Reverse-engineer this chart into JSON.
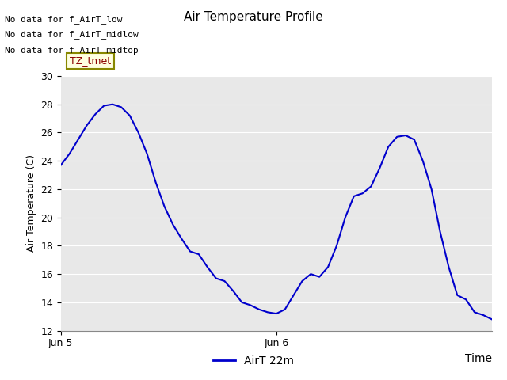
{
  "title": "Air Temperature Profile",
  "xlabel": "Time",
  "ylabel": "Air Temperature (C)",
  "legend_label": "AirT 22m",
  "annotations": [
    "No data for f_AirT_low",
    "No data for f_AirT_midlow",
    "No data for f_AirT_midtop"
  ],
  "tz_label": "TZ_tmet",
  "ylim": [
    12,
    30
  ],
  "yticks": [
    12,
    14,
    16,
    18,
    20,
    22,
    24,
    26,
    28,
    30
  ],
  "line_color": "#0000cc",
  "plot_bg_color": "#e8e8e8",
  "fig_bg_color": "#ffffff",
  "xtick_positions": [
    0.0,
    0.5
  ],
  "xtick_labels": [
    "Jun 5",
    "Jun 6"
  ],
  "data_x": [
    0.0,
    0.02,
    0.04,
    0.06,
    0.08,
    0.1,
    0.12,
    0.14,
    0.16,
    0.18,
    0.2,
    0.22,
    0.24,
    0.26,
    0.28,
    0.3,
    0.32,
    0.34,
    0.36,
    0.38,
    0.4,
    0.42,
    0.44,
    0.46,
    0.48,
    0.5,
    0.52,
    0.54,
    0.56,
    0.58,
    0.6,
    0.62,
    0.64,
    0.66,
    0.68,
    0.7,
    0.72,
    0.74,
    0.76,
    0.78,
    0.8,
    0.82,
    0.84,
    0.86,
    0.88,
    0.9,
    0.92,
    0.94,
    0.96,
    0.98,
    1.0
  ],
  "data_y": [
    23.7,
    24.5,
    25.5,
    26.5,
    27.3,
    27.9,
    28.0,
    27.8,
    27.2,
    26.0,
    24.5,
    22.5,
    20.8,
    19.5,
    18.5,
    17.6,
    17.4,
    16.5,
    15.7,
    15.5,
    14.8,
    14.0,
    13.8,
    13.5,
    13.3,
    13.2,
    13.5,
    14.5,
    15.5,
    16.0,
    15.8,
    16.5,
    18.0,
    20.0,
    21.5,
    21.7,
    22.2,
    23.5,
    25.0,
    25.7,
    25.8,
    25.5,
    24.0,
    22.0,
    19.0,
    16.5,
    14.5,
    14.2,
    13.3,
    13.1,
    12.8
  ]
}
